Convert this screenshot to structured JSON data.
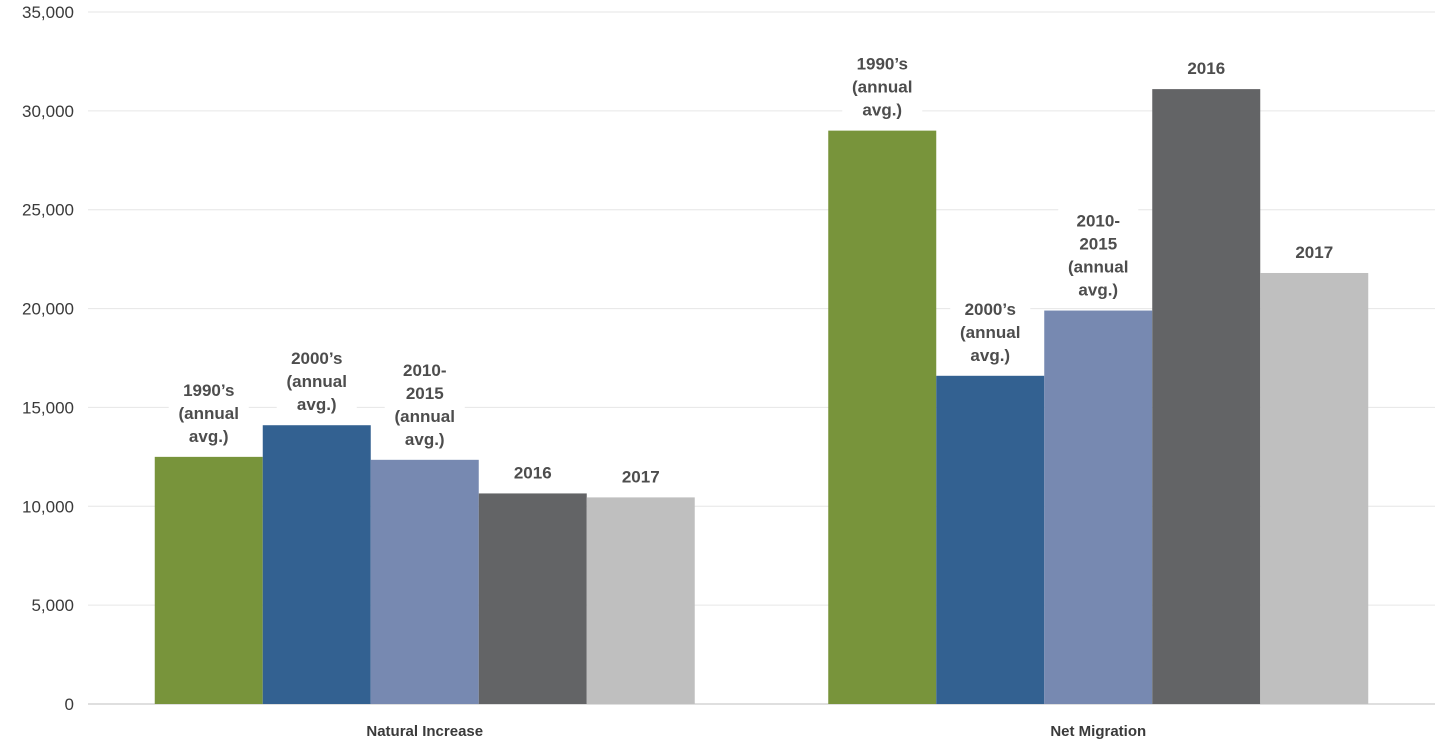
{
  "chart_data": {
    "type": "bar",
    "categories": [
      "Natural Increase",
      "Net Migration"
    ],
    "series": [
      {
        "name": "1990's (annual avg.)",
        "values": [
          12500,
          29000
        ],
        "color": "#78943b",
        "label_lines": [
          "1990’s",
          "(annual",
          "avg.)"
        ]
      },
      {
        "name": "2000's (annual avg.)",
        "values": [
          14100,
          16600
        ],
        "color": "#336191",
        "label_lines": [
          "2000’s",
          "(annual",
          "avg.)"
        ]
      },
      {
        "name": "2010-2015 (annual avg.)",
        "values": [
          12350,
          19900
        ],
        "color": "#7789b1",
        "label_lines": [
          "2010-",
          "2015",
          "(annual",
          "avg.)"
        ]
      },
      {
        "name": "2016",
        "values": [
          10650,
          31100
        ],
        "color": "#636466",
        "label_lines": [
          "2016"
        ]
      },
      {
        "name": "2017",
        "values": [
          10450,
          21800
        ],
        "color": "#bfbfbf",
        "label_lines": [
          "2017"
        ]
      }
    ],
    "yticks": [
      "0",
      "5,000",
      "10,000",
      "15,000",
      "20,000",
      "25,000",
      "30,000",
      "35,000"
    ],
    "ylim": [
      0,
      35000
    ],
    "grid": true,
    "title": "",
    "xlabel": "",
    "ylabel": ""
  }
}
